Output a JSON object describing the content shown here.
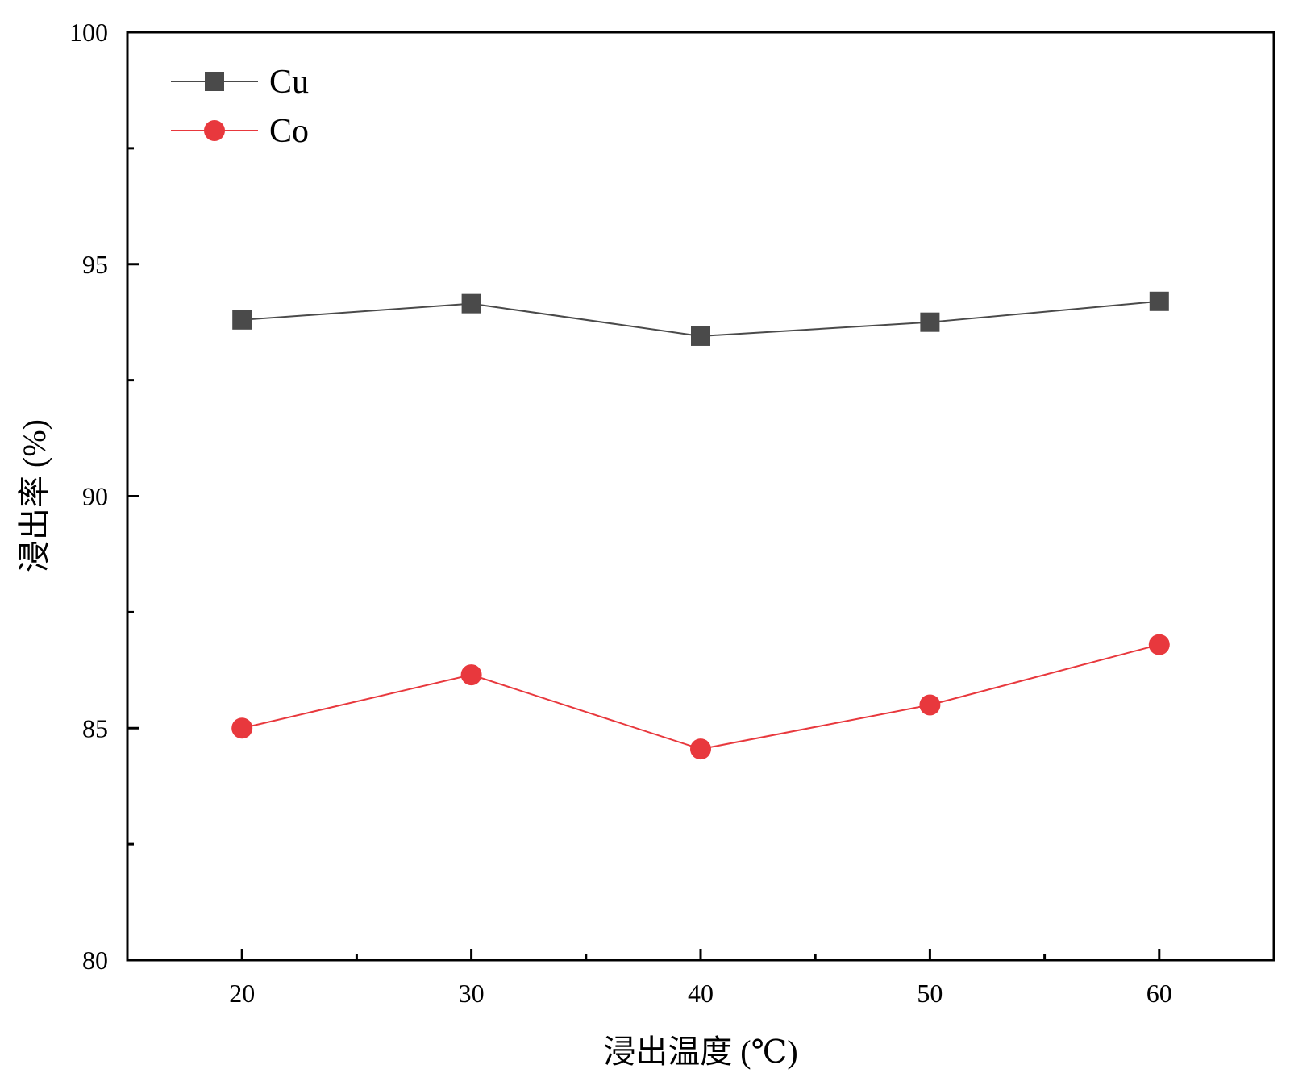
{
  "chart_data": {
    "type": "line",
    "xlabel": "浸出温度 (℃)",
    "ylabel": "浸出率 (%)",
    "x": [
      20,
      30,
      40,
      50,
      60
    ],
    "xlim": [
      15,
      65
    ],
    "ylim": [
      80,
      100
    ],
    "x_ticks": [
      20,
      30,
      40,
      50,
      60
    ],
    "x_minor_ticks": [
      25,
      35,
      45,
      55
    ],
    "y_ticks": [
      80,
      85,
      90,
      95,
      100
    ],
    "y_minor_ticks": [
      82.5,
      87.5,
      92.5,
      97.5
    ],
    "grid": false,
    "legend_position": "top-left",
    "series": [
      {
        "name": "Cu",
        "marker": "square",
        "color": "#4a4a4a",
        "values": [
          93.8,
          94.15,
          93.45,
          93.75,
          94.2
        ]
      },
      {
        "name": "Co",
        "marker": "circle",
        "color": "#e8383d",
        "values": [
          85.0,
          86.15,
          84.55,
          85.5,
          86.8
        ]
      }
    ]
  }
}
